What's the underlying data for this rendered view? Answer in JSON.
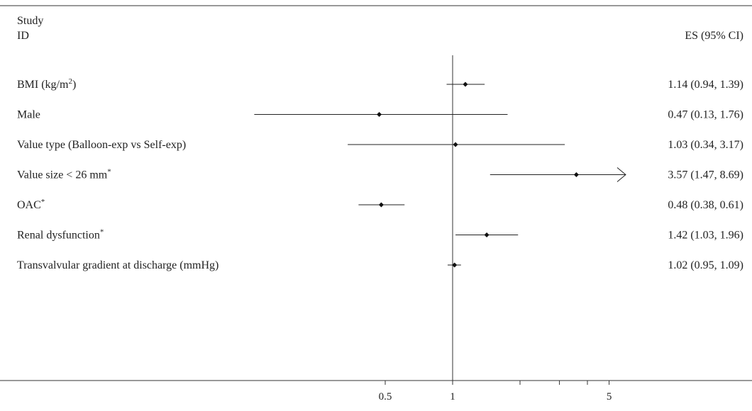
{
  "header": {
    "study_line1": "Study",
    "study_line2": "ID",
    "es_label": "ES (95% CI)"
  },
  "chart_data": {
    "type": "forest",
    "x_scale": "log",
    "xlim": [
      0.15,
      7.9
    ],
    "null_value": 1,
    "x_ticks": [
      0.5,
      1,
      2,
      3,
      4,
      5
    ],
    "x_tick_labels": [
      "0.5",
      "1",
      "",
      "",
      "",
      "5"
    ],
    "studies": [
      {
        "label": "BMI (kg/m",
        "sup": "2",
        "label_after": ")",
        "es": 1.14,
        "lo": 0.94,
        "hi": 1.39,
        "text": "1.14 (0.94, 1.39)",
        "arrow": false
      },
      {
        "label": "Male",
        "sup": "",
        "label_after": "",
        "es": 0.47,
        "lo": 0.13,
        "hi": 1.76,
        "text": "0.47 (0.13, 1.76)",
        "arrow": false
      },
      {
        "label": "Value type (Balloon-exp vs Self-exp)",
        "sup": "",
        "label_after": "",
        "es": 1.03,
        "lo": 0.34,
        "hi": 3.17,
        "text": "1.03 (0.34, 3.17)",
        "arrow": false
      },
      {
        "label": "Value size < 26 mm",
        "sup": "*",
        "label_after": "",
        "es": 3.57,
        "lo": 1.47,
        "hi": 8.69,
        "text": "3.57 (1.47, 8.69)",
        "arrow": true
      },
      {
        "label": "OAC",
        "sup": "*",
        "label_after": "",
        "es": 0.48,
        "lo": 0.38,
        "hi": 0.61,
        "text": "0.48 (0.38, 0.61)",
        "arrow": false
      },
      {
        "label": "Renal dysfunction",
        "sup": "*",
        "label_after": "",
        "es": 1.42,
        "lo": 1.03,
        "hi": 1.96,
        "text": "1.42 (1.03, 1.96)",
        "arrow": false
      },
      {
        "label": "Transvalvular gradient at discharge (mmHg)",
        "sup": "",
        "label_after": "",
        "es": 1.02,
        "lo": 0.95,
        "hi": 1.09,
        "text": "1.02 (0.95, 1.09)",
        "arrow": false
      }
    ]
  }
}
